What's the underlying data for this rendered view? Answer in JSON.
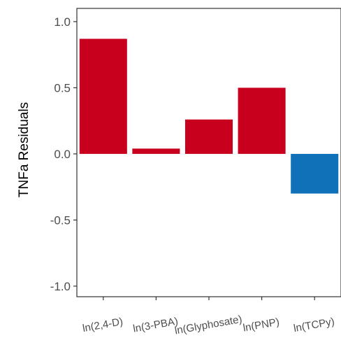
{
  "chart_data": {
    "type": "bar",
    "title": "",
    "xlabel": "",
    "ylabel": "TNFa Residuals",
    "categories": [
      "ln(2,4-D)",
      "ln(3-PBA)",
      "ln(Glyphosate)",
      "ln(PNP)",
      "ln(TCPy)"
    ],
    "values": [
      0.87,
      0.04,
      0.26,
      0.5,
      -0.3
    ],
    "ylim": [
      -1.08,
      1.1
    ],
    "y_ticks": [
      "1.0",
      "0.5",
      "0.0",
      "-0.5",
      "-1.0"
    ],
    "y_tick_values": [
      1.0,
      0.5,
      0.0,
      -0.5,
      -1.0
    ],
    "grid": false,
    "colors": {
      "positive": "#c8001e",
      "negative": "#1070b8",
      "axis": "#333333",
      "tick_text": "#4d4d4d"
    }
  }
}
